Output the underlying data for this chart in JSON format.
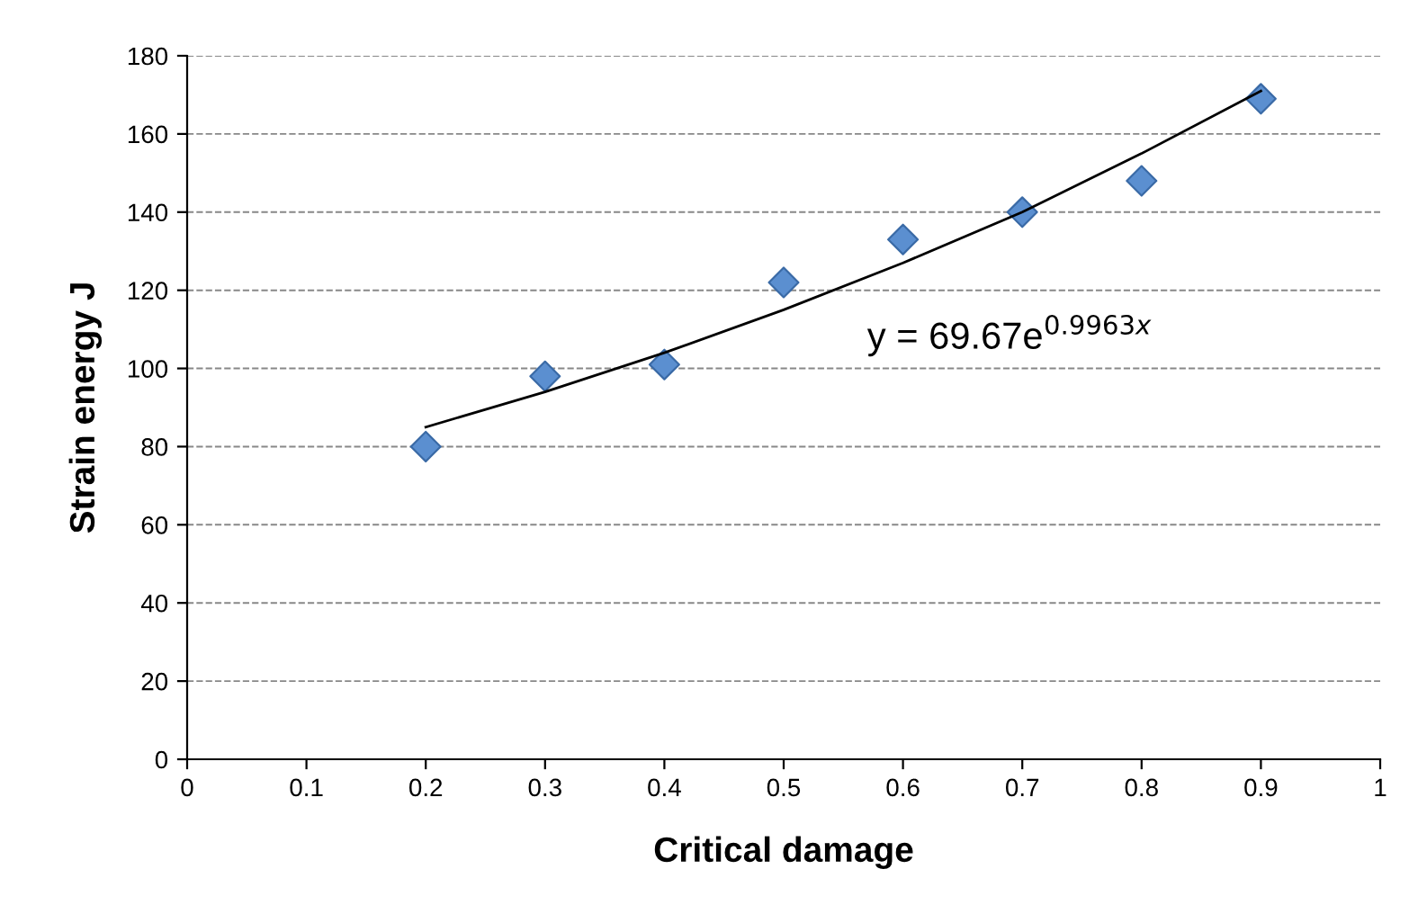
{
  "chart_data": {
    "type": "scatter",
    "xlabel": "Critical damage",
    "ylabel": "Strain energy J",
    "x": [
      0.2,
      0.3,
      0.4,
      0.5,
      0.6,
      0.7,
      0.8,
      0.9
    ],
    "series": [
      {
        "color": "#5b8fd0",
        "marker": "diamond",
        "values": [
          80,
          98,
          101,
          122,
          133,
          140,
          148,
          169
        ]
      },
      {
        "type": "line",
        "color": "#000000",
        "marker": "none",
        "x": [
          0.2,
          0.3,
          0.4,
          0.5,
          0.6,
          0.7,
          0.8,
          0.9
        ],
        "values": [
          85,
          94,
          104,
          115,
          127,
          140,
          155,
          171
        ]
      }
    ],
    "annotations": [
      "y = 69.67e$^{0.9963x}$"
    ],
    "xlim": [
      0,
      1
    ],
    "xticks": [
      0,
      0.1,
      0.2,
      0.3,
      0.4,
      0.5,
      0.6,
      0.7,
      0.8,
      0.9,
      1
    ],
    "ylim": [
      0,
      180
    ],
    "yticks": [
      0,
      20,
      40,
      60,
      80,
      100,
      120,
      140,
      160,
      180
    ],
    "grid": "y",
    "legend": false
  }
}
